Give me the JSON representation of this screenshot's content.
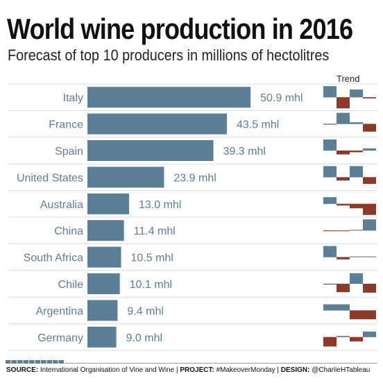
{
  "title": "World wine production in 2016",
  "subtitle": "Forecast of top 10 producers in millions of hectolitres",
  "trend_header": "Trend",
  "footer": {
    "source_label": "SOURCE:",
    "source_text": " International Organisation of Vine and Wine | ",
    "project_label": "PROJECT:",
    "project_text": " #MakeoverMonday | ",
    "design_label": "DESIGN:",
    "design_text": " @CharlieHTableau"
  },
  "colors": {
    "bar": "#5a7f96",
    "up": "#5a7f96",
    "down": "#8e3a26",
    "grid": "#d9d9d9",
    "label": "#5a7f96"
  },
  "chart_data": {
    "type": "bar",
    "orientation": "horizontal",
    "title": "World wine production in 2016",
    "subtitle": "Forecast of top 10 producers in millions of hectolitres",
    "unit": "mhl",
    "categories": [
      "Italy",
      "France",
      "Spain",
      "United States",
      "Australia",
      "China",
      "South Africa",
      "Chile",
      "Argentina",
      "Germany"
    ],
    "values": [
      50.9,
      43.5,
      39.3,
      23.9,
      13.0,
      11.4,
      10.5,
      10.1,
      9.4,
      9.0
    ],
    "value_labels": [
      "50.9 mhl",
      "43.5 mhl",
      "39.3 mhl",
      "23.9 mhl",
      "13.0 mhl",
      "11.4 mhl",
      "10.5 mhl",
      "10.1 mhl",
      "9.4 mhl",
      "9.0 mhl"
    ],
    "xlim": [
      0,
      56
    ],
    "trend": {
      "description": "year-over-year change sparkline, 4 periods, up above axis / down below axis",
      "series": [
        [
          1,
          -1,
          0.7,
          -0.1
        ],
        [
          -0.05,
          1,
          0.15,
          -0.7
        ],
        [
          1,
          -0.35,
          -0.15,
          0.2
        ],
        [
          1,
          -0.3,
          1,
          -0.6
        ],
        [
          0.6,
          -0.15,
          -0.4,
          -1
        ],
        [
          -0.05,
          -0.05,
          0,
          1
        ],
        [
          1,
          -0.2,
          0,
          0
        ],
        [
          -0.05,
          -0.75,
          0.95,
          -0.8
        ],
        [
          0.55,
          0.55,
          -0.8,
          -0.8
        ],
        [
          -0.85,
          0.1,
          -0.4,
          0.5
        ]
      ]
    },
    "grid": true
  }
}
